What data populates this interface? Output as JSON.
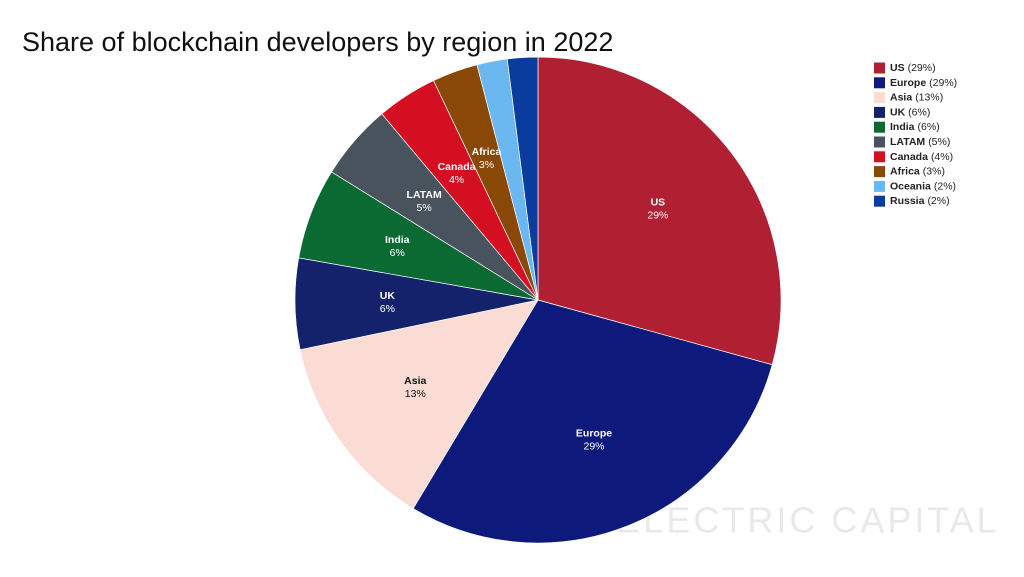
{
  "chart_data": {
    "type": "pie",
    "title": "Share of blockchain developers by region in 2022",
    "categories": [
      "US",
      "Europe",
      "Asia",
      "UK",
      "India",
      "LATAM",
      "Canada",
      "Africa",
      "Oceania",
      "Russia"
    ],
    "values": [
      29,
      29,
      13,
      6,
      6,
      5,
      4,
      3,
      2,
      2
    ],
    "value_labels": [
      "29%",
      "29%",
      "13%",
      "6%",
      "6%",
      "5%",
      "4%",
      "3%",
      null,
      null
    ],
    "legend_value_labels": [
      "(29%)",
      "(29%)",
      "(13%)",
      "(6%)",
      "(6%)",
      "(5%)",
      "(4%)",
      "(3%)",
      "(2%)",
      "(2%)"
    ],
    "colors": [
      "#b01f32",
      "#0d1a7c",
      "#fadcd4",
      "#13226b",
      "#0b6a32",
      "#48535d",
      "#d50f22",
      "#8a4807",
      "#6bb7ef",
      "#0a3c9e"
    ],
    "label_colors": [
      "#ffffff",
      "#ffffff",
      "#111111",
      "#ffffff",
      "#ffffff",
      "#ffffff",
      "#ffffff",
      "#ffffff",
      "#ffffff",
      "#ffffff"
    ],
    "legend_position": "upper right",
    "watermark": "ELECTRIC CAPITAL"
  }
}
